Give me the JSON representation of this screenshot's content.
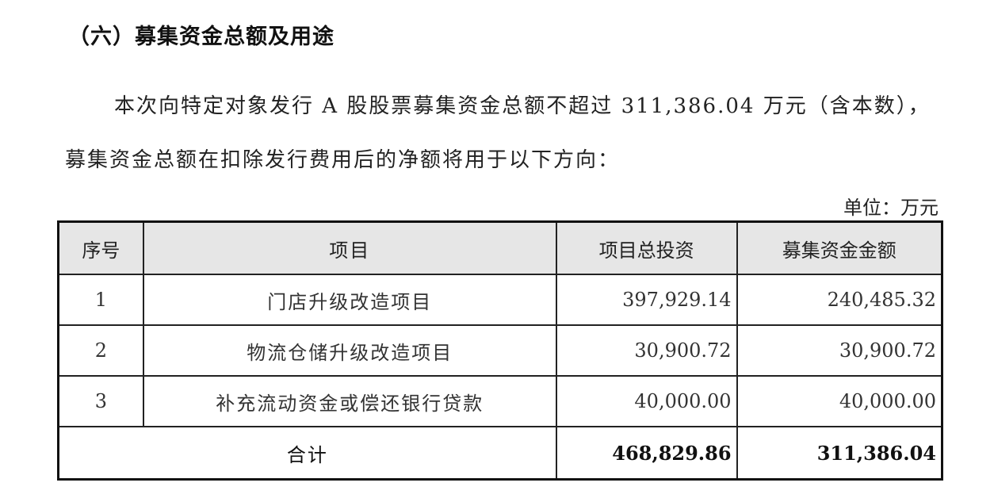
{
  "heading": "（六）募集资金总额及用途",
  "paragraph": "本次向特定对象发行 A 股股票募集资金总额不超过 311,386.04 万元（含本数），募集资金总额在扣除发行费用后的净额将用于以下方向：",
  "unit": "单位：万元",
  "table": {
    "headers": [
      "序号",
      "项目",
      "项目总投资",
      "募集资金金额"
    ],
    "rows": [
      {
        "no": "1",
        "project": "门店升级改造项目",
        "total": "397,929.14",
        "raised": "240,485.32"
      },
      {
        "no": "2",
        "project": "物流仓储升级改造项目",
        "total": "30,900.72",
        "raised": "30,900.72"
      },
      {
        "no": "3",
        "project": "补充流动资金或偿还银行贷款",
        "total": "40,000.00",
        "raised": "40,000.00"
      }
    ],
    "total": {
      "label": "合计",
      "total": "468,829.86",
      "raised": "311,386.04"
    }
  }
}
